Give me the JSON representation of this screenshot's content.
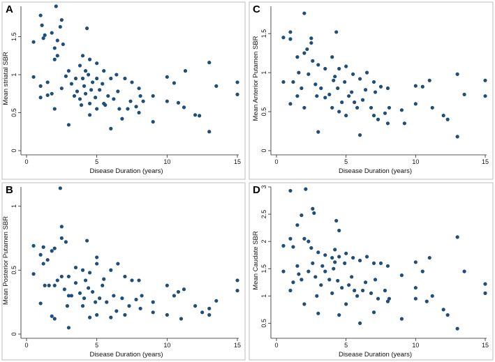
{
  "figure": {
    "dot_color": "#1f4e79",
    "frame_color": "#bdbdbd"
  },
  "chart_data": [
    {
      "type": "scatter",
      "panel": "A",
      "title": "",
      "xlabel": "Disease Duration (years)",
      "ylabel": "Mean striatal SBR",
      "xlim": [
        0,
        15
      ],
      "ylim": [
        0,
        1.9
      ],
      "xticks": [
        0,
        5,
        10,
        15
      ],
      "yticks": [
        0,
        0.5,
        1,
        1.5
      ],
      "ytick_labels": [
        "0",
        "0.5",
        "1",
        "1.5"
      ],
      "points": [
        [
          0.5,
          1.43
        ],
        [
          1,
          1.78
        ],
        [
          1.1,
          1.65
        ],
        [
          1.3,
          1.52
        ],
        [
          2.1,
          1.9
        ],
        [
          2.4,
          1.63
        ],
        [
          2.5,
          1.72
        ],
        [
          2.2,
          1.45
        ],
        [
          2.0,
          1.35
        ],
        [
          1.8,
          1.55
        ],
        [
          1.2,
          1.48
        ],
        [
          0.5,
          0.97
        ],
        [
          1.0,
          0.85
        ],
        [
          1.5,
          0.9
        ],
        [
          1.8,
          0.75
        ],
        [
          2.0,
          1.2
        ],
        [
          2.2,
          1.25
        ],
        [
          2.6,
          1.4
        ],
        [
          3.0,
          1.05
        ],
        [
          3.5,
          0.95
        ],
        [
          4.3,
          1.61
        ],
        [
          4.0,
          1.25
        ],
        [
          3.8,
          1.12
        ],
        [
          4.5,
          1.2
        ],
        [
          5.0,
          1.15
        ],
        [
          5.5,
          1.05
        ],
        [
          4.2,
          0.75
        ],
        [
          4.5,
          0.62
        ],
        [
          5.0,
          0.95
        ],
        [
          5.5,
          0.62
        ],
        [
          6.0,
          0.95
        ],
        [
          6.5,
          0.78
        ],
        [
          7.0,
          0.95
        ],
        [
          7.5,
          0.9
        ],
        [
          8.0,
          0.82
        ],
        [
          8.3,
          0.65
        ],
        [
          9.0,
          0.72
        ],
        [
          10,
          0.97
        ],
        [
          10.5,
          0.89
        ],
        [
          11.3,
          1.05
        ],
        [
          13,
          1.16
        ],
        [
          13.5,
          0.85
        ],
        [
          15,
          0.9
        ],
        [
          15,
          0.74
        ],
        [
          10,
          0.65
        ],
        [
          10.8,
          0.63
        ],
        [
          11.2,
          0.57
        ],
        [
          12,
          0.47
        ],
        [
          12.3,
          0.46
        ],
        [
          13,
          0.25
        ],
        [
          9.0,
          0.38
        ],
        [
          8.0,
          0.5
        ],
        [
          7.2,
          0.55
        ],
        [
          6.0,
          0.29
        ],
        [
          5.0,
          0.55
        ],
        [
          4.5,
          0.47
        ],
        [
          3.0,
          0.34
        ],
        [
          2.0,
          0.55
        ],
        [
          1.0,
          0.7
        ],
        [
          1.5,
          0.73
        ],
        [
          2.5,
          0.82
        ],
        [
          3.2,
          0.88
        ],
        [
          3.8,
          0.68
        ],
        [
          4.1,
          0.85
        ],
        [
          4.4,
          1.0
        ],
        [
          4.7,
          0.9
        ],
        [
          5.2,
          0.8
        ],
        [
          5.8,
          0.72
        ],
        [
          6.2,
          0.68
        ],
        [
          6.8,
          0.42
        ],
        [
          7.4,
          0.65
        ],
        [
          7.8,
          0.58
        ],
        [
          8.1,
          0.72
        ],
        [
          4.0,
          0.95
        ],
        [
          4.2,
          1.05
        ],
        [
          3.6,
          0.78
        ],
        [
          2.8,
          0.98
        ],
        [
          3.4,
          0.72
        ],
        [
          5.4,
          0.88
        ],
        [
          6.4,
          1.0
        ],
        [
          4.9,
          0.7
        ],
        [
          5.6,
          0.6
        ],
        [
          6.6,
          0.55
        ],
        [
          4.6,
          0.8
        ],
        [
          3.9,
          0.6
        ]
      ]
    },
    {
      "type": "scatter",
      "panel": "B",
      "title": "",
      "xlabel": "Disease Duration (years)",
      "ylabel": "Mean Posterior Putamen SBR",
      "xlim": [
        0,
        15
      ],
      "ylim": [
        0,
        1.15
      ],
      "xticks": [
        0,
        5,
        10,
        15
      ],
      "yticks": [
        0,
        0.5,
        1
      ],
      "ytick_labels": [
        "0",
        "0.5",
        "1"
      ],
      "points": [
        [
          2.4,
          1.14
        ],
        [
          2.5,
          0.84
        ],
        [
          2.5,
          0.75
        ],
        [
          2.8,
          0.72
        ],
        [
          1.2,
          0.68
        ],
        [
          1.8,
          0.65
        ],
        [
          2.0,
          0.67
        ],
        [
          0.5,
          0.69
        ],
        [
          0.5,
          0.47
        ],
        [
          1.0,
          0.62
        ],
        [
          1.2,
          0.55
        ],
        [
          1.5,
          0.58
        ],
        [
          1.6,
          0.38
        ],
        [
          2.0,
          0.38
        ],
        [
          2.5,
          0.45
        ],
        [
          3.0,
          0.45
        ],
        [
          3.5,
          0.52
        ],
        [
          4.0,
          0.5
        ],
        [
          4.3,
          0.73
        ],
        [
          4.5,
          0.48
        ],
        [
          5.0,
          0.55
        ],
        [
          5.0,
          0.6
        ],
        [
          5.5,
          0.43
        ],
        [
          6.0,
          0.5
        ],
        [
          6.5,
          0.55
        ],
        [
          7.0,
          0.45
        ],
        [
          7.5,
          0.42
        ],
        [
          8.0,
          0.42
        ],
        [
          8.2,
          0.3
        ],
        [
          9.0,
          0.25
        ],
        [
          10,
          0.38
        ],
        [
          10.5,
          0.3
        ],
        [
          10.8,
          0.33
        ],
        [
          11.2,
          0.35
        ],
        [
          12,
          0.22
        ],
        [
          12.5,
          0.17
        ],
        [
          13,
          0.15
        ],
        [
          13,
          0.2
        ],
        [
          13.5,
          0.26
        ],
        [
          15,
          0.42
        ],
        [
          15,
          0.34
        ],
        [
          10,
          0.15
        ],
        [
          11,
          0.12
        ],
        [
          9,
          0.17
        ],
        [
          7,
          0.15
        ],
        [
          6,
          0.13
        ],
        [
          5,
          0.15
        ],
        [
          4.5,
          0.13
        ],
        [
          3,
          0.05
        ],
        [
          2,
          0.12
        ],
        [
          1.8,
          0.14
        ],
        [
          1,
          0.24
        ],
        [
          1.3,
          0.38
        ],
        [
          2.2,
          0.42
        ],
        [
          2.7,
          0.35
        ],
        [
          3.2,
          0.3
        ],
        [
          3.8,
          0.32
        ],
        [
          4.1,
          0.28
        ],
        [
          4.4,
          0.36
        ],
        [
          4.7,
          0.33
        ],
        [
          5.2,
          0.28
        ],
        [
          5.7,
          0.25
        ],
        [
          6.2,
          0.3
        ],
        [
          6.8,
          0.28
        ],
        [
          7.3,
          0.22
        ],
        [
          7.8,
          0.27
        ],
        [
          8.1,
          0.2
        ],
        [
          3.5,
          0.4
        ],
        [
          4.0,
          0.22
        ],
        [
          5.4,
          0.38
        ],
        [
          6.4,
          0.18
        ],
        [
          4.9,
          0.25
        ],
        [
          3.0,
          0.3
        ],
        [
          2.9,
          0.22
        ],
        [
          4.2,
          0.42
        ]
      ]
    },
    {
      "type": "scatter",
      "panel": "C",
      "title": "",
      "xlabel": "Disease Duration (years)",
      "ylabel": "Mean Anterior Putamen SBR",
      "xlim": [
        0,
        15
      ],
      "ylim": [
        0,
        1.85
      ],
      "xticks": [
        0,
        5,
        10,
        15
      ],
      "yticks": [
        0,
        0.5,
        1,
        1.5
      ],
      "ytick_labels": [
        "0",
        "0.5",
        "1",
        "1.5"
      ],
      "points": [
        [
          2.0,
          1.76
        ],
        [
          4.3,
          1.52
        ],
        [
          1.0,
          1.52
        ],
        [
          0.5,
          1.45
        ],
        [
          1.0,
          1.43
        ],
        [
          2.5,
          1.44
        ],
        [
          2.5,
          1.38
        ],
        [
          2.2,
          1.3
        ],
        [
          2.0,
          1.25
        ],
        [
          1.5,
          1.2
        ],
        [
          3.0,
          1.1
        ],
        [
          3.5,
          1.05
        ],
        [
          4.0,
          1.2
        ],
        [
          4.5,
          1.05
        ],
        [
          5.0,
          1.08
        ],
        [
          5.5,
          0.98
        ],
        [
          6.0,
          0.92
        ],
        [
          6.5,
          1.0
        ],
        [
          7.0,
          0.88
        ],
        [
          7.5,
          0.82
        ],
        [
          8.0,
          0.8
        ],
        [
          9.0,
          0.52
        ],
        [
          10,
          0.83
        ],
        [
          10,
          0.6
        ],
        [
          10.5,
          0.82
        ],
        [
          11,
          0.9
        ],
        [
          11.2,
          0.55
        ],
        [
          12,
          0.45
        ],
        [
          12.3,
          0.4
        ],
        [
          13,
          0.98
        ],
        [
          13,
          0.18
        ],
        [
          13.5,
          0.72
        ],
        [
          15,
          0.9
        ],
        [
          15,
          0.7
        ],
        [
          9.2,
          0.35
        ],
        [
          8,
          0.35
        ],
        [
          7,
          0.45
        ],
        [
          6,
          0.2
        ],
        [
          5,
          0.45
        ],
        [
          4.5,
          0.5
        ],
        [
          3,
          0.24
        ],
        [
          2,
          0.55
        ],
        [
          1.0,
          0.6
        ],
        [
          0.5,
          0.88
        ],
        [
          1.2,
          0.88
        ],
        [
          1.5,
          0.7
        ],
        [
          1.8,
          0.8
        ],
        [
          2.3,
          0.98
        ],
        [
          2.8,
          0.85
        ],
        [
          3.2,
          0.8
        ],
        [
          3.8,
          0.72
        ],
        [
          4.1,
          0.9
        ],
        [
          4.4,
          0.8
        ],
        [
          4.7,
          0.62
        ],
        [
          5.2,
          0.7
        ],
        [
          5.8,
          0.55
        ],
        [
          6.2,
          0.65
        ],
        [
          6.8,
          0.55
        ],
        [
          7.3,
          0.4
        ],
        [
          7.8,
          0.48
        ],
        [
          8.1,
          0.55
        ],
        [
          3.5,
          0.68
        ],
        [
          4.0,
          0.55
        ],
        [
          5.4,
          0.75
        ],
        [
          6.4,
          0.78
        ],
        [
          4.9,
          0.88
        ],
        [
          2.9,
          0.7
        ],
        [
          4.2,
          0.95
        ],
        [
          5.6,
          0.62
        ],
        [
          7.1,
          0.75
        ],
        [
          1.6,
          1.0
        ],
        [
          2.6,
          1.15
        ]
      ]
    },
    {
      "type": "scatter",
      "panel": "D",
      "title": "",
      "xlabel": "Disease Duration (years)",
      "ylabel": "Mean Caudate SBR",
      "xlim": [
        0,
        15
      ],
      "ylim": [
        0.3,
        3.0
      ],
      "xticks": [
        0,
        5,
        10,
        15
      ],
      "yticks": [
        0.5,
        1,
        1.5,
        2,
        2.5,
        3
      ],
      "ytick_labels": [
        "0.5",
        "1",
        "1.5",
        "2",
        "2.5",
        "3"
      ],
      "points": [
        [
          2.1,
          2.96
        ],
        [
          1.0,
          2.93
        ],
        [
          2.6,
          2.6
        ],
        [
          2.7,
          2.52
        ],
        [
          1.8,
          2.48
        ],
        [
          1.5,
          2.3
        ],
        [
          4.3,
          2.38
        ],
        [
          4.5,
          2.2
        ],
        [
          1.0,
          2.05
        ],
        [
          2.0,
          2.05
        ],
        [
          2.3,
          2.0
        ],
        [
          0.5,
          1.92
        ],
        [
          1.2,
          1.9
        ],
        [
          2.5,
          1.88
        ],
        [
          3.0,
          1.8
        ],
        [
          3.5,
          1.75
        ],
        [
          4.0,
          1.7
        ],
        [
          4.2,
          1.85
        ],
        [
          4.5,
          1.72
        ],
        [
          5.0,
          1.78
        ],
        [
          5.5,
          1.7
        ],
        [
          6.0,
          1.65
        ],
        [
          6.5,
          1.72
        ],
        [
          7.0,
          1.6
        ],
        [
          7.5,
          1.6
        ],
        [
          8.0,
          1.55
        ],
        [
          9.0,
          1.38
        ],
        [
          10,
          1.62
        ],
        [
          10,
          1.15
        ],
        [
          10.5,
          1.45
        ],
        [
          11,
          1.7
        ],
        [
          11.2,
          1.0
        ],
        [
          12,
          0.75
        ],
        [
          12.3,
          0.65
        ],
        [
          13,
          2.08
        ],
        [
          13,
          0.4
        ],
        [
          13.5,
          1.45
        ],
        [
          15,
          1.22
        ],
        [
          15,
          1.05
        ],
        [
          10,
          0.95
        ],
        [
          10.8,
          0.9
        ],
        [
          9.0,
          0.58
        ],
        [
          8,
          0.9
        ],
        [
          7,
          0.7
        ],
        [
          6,
          0.5
        ],
        [
          5,
          0.85
        ],
        [
          4.5,
          0.65
        ],
        [
          3,
          0.68
        ],
        [
          2,
          0.85
        ],
        [
          1.0,
          1.1
        ],
        [
          0.5,
          1.45
        ],
        [
          1.2,
          1.25
        ],
        [
          1.5,
          1.55
        ],
        [
          1.8,
          1.3
        ],
        [
          2.3,
          1.45
        ],
        [
          2.8,
          1.35
        ],
        [
          3.2,
          1.2
        ],
        [
          3.8,
          1.3
        ],
        [
          4.1,
          1.5
        ],
        [
          4.4,
          1.28
        ],
        [
          4.7,
          1.15
        ],
        [
          5.2,
          1.2
        ],
        [
          5.8,
          1.0
        ],
        [
          6.2,
          1.1
        ],
        [
          6.8,
          1.05
        ],
        [
          7.3,
          0.95
        ],
        [
          7.8,
          1.1
        ],
        [
          8.1,
          0.95
        ],
        [
          3.5,
          1.45
        ],
        [
          4.0,
          1.05
        ],
        [
          5.4,
          1.35
        ],
        [
          6.4,
          1.25
        ],
        [
          4.9,
          1.6
        ],
        [
          2.9,
          1.0
        ],
        [
          4.2,
          1.62
        ],
        [
          5.6,
          1.1
        ],
        [
          7.1,
          1.3
        ],
        [
          1.6,
          1.4
        ],
        [
          2.6,
          1.6
        ],
        [
          3.3,
          1.55
        ]
      ]
    }
  ]
}
